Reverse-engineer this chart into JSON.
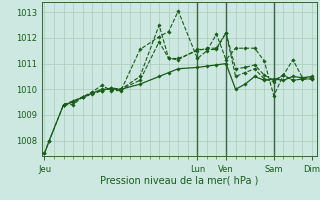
{
  "bg_color": "#cce8e0",
  "grid_color": "#aaccbb",
  "line_color": "#1a5c1a",
  "title": "Pression niveau de la mer( hPa )",
  "ylim": [
    1007.4,
    1013.4
  ],
  "yticks": [
    1008,
    1009,
    1010,
    1011,
    1012,
    1013
  ],
  "xlim": [
    -0.3,
    28.5
  ],
  "day_tick_pos": [
    0,
    16,
    19,
    24,
    28
  ],
  "day_labels": [
    "Jeu",
    "Lun",
    "Ven",
    "Sam",
    "Dim"
  ],
  "dark_vlines": [
    16,
    19,
    24
  ],
  "series": [
    {
      "x": [
        0,
        0.5,
        2,
        3,
        4,
        5,
        6,
        7,
        8,
        10,
        12,
        13,
        14,
        16,
        17,
        18,
        19,
        20,
        21,
        22,
        23,
        24,
        25,
        26,
        27,
        28
      ],
      "y": [
        1007.5,
        1008.0,
        1009.4,
        1009.4,
        1009.7,
        1009.9,
        1010.15,
        1009.95,
        1009.95,
        1011.55,
        1012.05,
        1012.25,
        1013.05,
        1011.2,
        1011.5,
        1012.15,
        1011.15,
        1011.6,
        1011.6,
        1011.6,
        1011.1,
        1009.75,
        1010.55,
        1011.15,
        1010.45,
        1010.45
      ],
      "linestyle": "--",
      "linewidth": 0.8,
      "marker": true
    },
    {
      "x": [
        2,
        3,
        4,
        5,
        6,
        7,
        8,
        10,
        12,
        13,
        14,
        16,
        17,
        18,
        19,
        20,
        21,
        22,
        23,
        24,
        25,
        26,
        27,
        28
      ],
      "y": [
        1009.4,
        1009.5,
        1009.7,
        1009.85,
        1009.95,
        1010.05,
        1010.0,
        1010.5,
        1012.5,
        1011.2,
        1011.2,
        1011.5,
        1011.6,
        1011.6,
        1012.2,
        1010.8,
        1010.85,
        1010.95,
        1010.55,
        1010.35,
        1010.55,
        1010.35,
        1010.4,
        1010.4
      ],
      "linestyle": "--",
      "linewidth": 0.8,
      "marker": true
    },
    {
      "x": [
        2,
        3,
        4,
        5,
        6,
        7,
        8,
        10,
        12,
        13,
        14,
        16,
        17,
        18,
        19,
        20,
        21,
        22,
        23,
        24,
        25,
        26,
        27,
        28
      ],
      "y": [
        1009.4,
        1009.55,
        1009.7,
        1009.8,
        1009.95,
        1010.05,
        1010.0,
        1010.35,
        1011.85,
        1011.2,
        1011.15,
        1011.55,
        1011.55,
        1011.55,
        1012.2,
        1010.5,
        1010.65,
        1010.8,
        1010.4,
        1010.3,
        1010.55,
        1010.35,
        1010.4,
        1010.4
      ],
      "linestyle": "--",
      "linewidth": 0.8,
      "marker": true
    },
    {
      "x": [
        0,
        0.5,
        2,
        3,
        4,
        5,
        6,
        7,
        8,
        10,
        12,
        13,
        14,
        16,
        17,
        18,
        19,
        20,
        21,
        22,
        23,
        24,
        25,
        26,
        27,
        28
      ],
      "y": [
        1007.5,
        1008.0,
        1009.4,
        1009.5,
        1009.7,
        1009.85,
        1010.0,
        1010.0,
        1010.0,
        1010.2,
        1010.5,
        1010.65,
        1010.8,
        1010.85,
        1010.9,
        1010.95,
        1011.0,
        1010.0,
        1010.2,
        1010.5,
        1010.35,
        1010.4,
        1010.35,
        1010.5,
        1010.45,
        1010.5
      ],
      "linestyle": "-",
      "linewidth": 0.9,
      "marker": true
    }
  ]
}
